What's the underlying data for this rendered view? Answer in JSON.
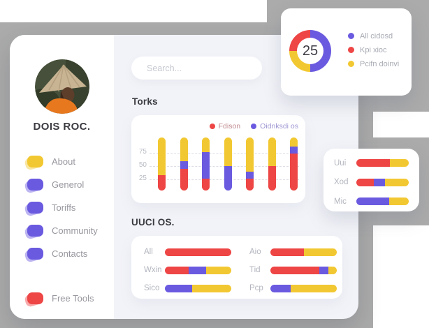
{
  "colors": {
    "red": "#EE4545",
    "yellow": "#F2C832",
    "purple": "#6A5AE0",
    "backdrop_gray": "#ABABAB",
    "dashboard_bg": "#F2F3F8"
  },
  "sidebar": {
    "profile_name": "DOIS ROC.",
    "avatar_alt": "person wearing conical hat",
    "menu": [
      {
        "label": "About",
        "color": "yellow"
      },
      {
        "label": "Generol",
        "color": "purple"
      },
      {
        "label": "Toriffs",
        "color": "purple"
      },
      {
        "label": "Community",
        "color": "purple"
      },
      {
        "label": "Contacts",
        "color": "purple"
      }
    ],
    "footer_item": {
      "label": "Free Tools",
      "color": "red"
    }
  },
  "search": {
    "placeholder": "Search..."
  },
  "sections": {
    "torks_title": "Torks",
    "uuci_title": "UUCI OS."
  },
  "chart_data": [
    {
      "id": "torks-stacked-columns",
      "type": "bar",
      "orientation": "vertical",
      "stacked": true,
      "title": "Torks",
      "ylim": [
        0,
        105
      ],
      "yticks": [
        75,
        50,
        25
      ],
      "grid": "dashed-horizontal",
      "legend_position": "top-right",
      "legend": [
        {
          "name": "Fdison",
          "color": "red",
          "label_color": "#C08A8F"
        },
        {
          "name": "Oidnksdi os",
          "color": "purple",
          "label_color": "#9D96D2"
        }
      ],
      "bars": [
        {
          "segments": [
            {
              "color": "red",
              "value": 31
            },
            {
              "color": "yellow",
              "value": 74
            }
          ]
        },
        {
          "segments": [
            {
              "color": "red",
              "value": 43
            },
            {
              "color": "purple",
              "value": 15
            },
            {
              "color": "yellow",
              "value": 47
            }
          ]
        },
        {
          "segments": [
            {
              "color": "red",
              "value": 24
            },
            {
              "color": "purple",
              "value": 52
            },
            {
              "color": "yellow",
              "value": 29
            }
          ]
        },
        {
          "segments": [
            {
              "color": "purple",
              "value": 49
            },
            {
              "color": "yellow",
              "value": 56
            }
          ]
        },
        {
          "segments": [
            {
              "color": "red",
              "value": 24
            },
            {
              "color": "purple",
              "value": 14
            },
            {
              "color": "yellow",
              "value": 67
            }
          ]
        },
        {
          "segments": [
            {
              "color": "red",
              "value": 49
            },
            {
              "color": "yellow",
              "value": 56
            }
          ]
        },
        {
          "segments": [
            {
              "color": "red",
              "value": 73
            },
            {
              "color": "purple",
              "value": 14
            },
            {
              "color": "yellow",
              "value": 18
            }
          ]
        }
      ]
    },
    {
      "id": "uuci-horizontal-bars",
      "type": "bar",
      "orientation": "horizontal",
      "stacked": true,
      "title": "UUCI OS.",
      "unit": "percent",
      "rows": [
        {
          "label": "All",
          "segments": [
            {
              "color": "red",
              "value": 100
            }
          ]
        },
        {
          "label": "Wxin",
          "segments": [
            {
              "color": "red",
              "value": 36
            },
            {
              "color": "purple",
              "value": 26
            },
            {
              "color": "yellow",
              "value": 38
            }
          ]
        },
        {
          "label": "Sico",
          "segments": [
            {
              "color": "purple",
              "value": 41
            },
            {
              "color": "yellow",
              "value": 59
            }
          ]
        },
        {
          "label": "Aio",
          "segments": [
            {
              "color": "red",
              "value": 50
            },
            {
              "color": "yellow",
              "value": 50
            }
          ]
        },
        {
          "label": "Tid",
          "segments": [
            {
              "color": "red",
              "value": 74
            },
            {
              "color": "purple",
              "value": 13
            },
            {
              "color": "yellow",
              "value": 13
            }
          ]
        },
        {
          "label": "Pcp",
          "segments": [
            {
              "color": "purple",
              "value": 31
            },
            {
              "color": "yellow",
              "value": 69
            }
          ]
        }
      ]
    },
    {
      "id": "donut-summary",
      "type": "pie",
      "center_value": "25",
      "legend_position": "right",
      "slices": [
        {
          "name": "All cidosd",
          "color": "purple",
          "value": 50
        },
        {
          "name": "Pcifn doinvi",
          "color": "yellow",
          "value": 25
        },
        {
          "name": "Kpi xioc",
          "color": "red",
          "value": 25
        }
      ],
      "legend": [
        {
          "name": "All cidosd",
          "color": "purple"
        },
        {
          "name": "Kpi xioc",
          "color": "red"
        },
        {
          "name": "Pcifn doinvi",
          "color": "yellow"
        }
      ]
    },
    {
      "id": "side-horizontal-bars",
      "type": "bar",
      "orientation": "horizontal",
      "stacked": true,
      "unit": "percent",
      "rows": [
        {
          "label": "Uui",
          "segments": [
            {
              "color": "red",
              "value": 64
            },
            {
              "color": "yellow",
              "value": 36
            }
          ]
        },
        {
          "label": "Xod",
          "segments": [
            {
              "color": "red",
              "value": 33
            },
            {
              "color": "purple",
              "value": 22
            },
            {
              "color": "yellow",
              "value": 45
            }
          ]
        },
        {
          "label": "Mic",
          "segments": [
            {
              "color": "purple",
              "value": 63
            },
            {
              "color": "yellow",
              "value": 37
            }
          ]
        }
      ]
    }
  ]
}
